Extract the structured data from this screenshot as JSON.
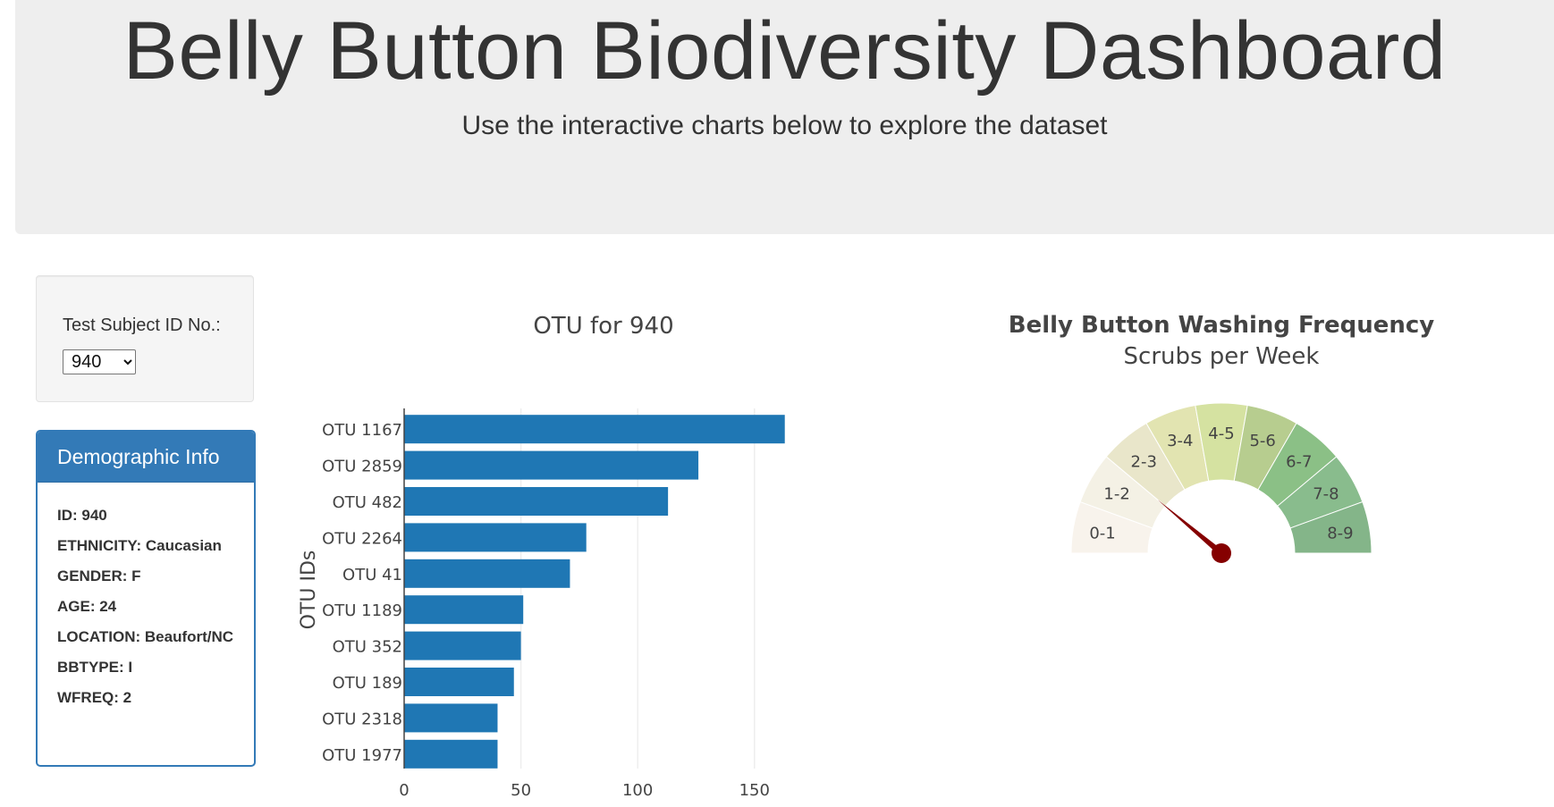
{
  "header": {
    "title": "Belly Button Biodiversity Dashboard",
    "subtitle": "Use the interactive charts below to explore the dataset"
  },
  "selector": {
    "label": "Test Subject ID No.:",
    "selected_value": "940"
  },
  "demographics": {
    "heading": "Demographic Info",
    "items": [
      "ID: 940",
      "ETHNICITY: Caucasian",
      "GENDER: F",
      "AGE: 24",
      "LOCATION: Beaufort/NC",
      "BBTYPE: I",
      "WFREQ: 2"
    ]
  },
  "chart_data": [
    {
      "type": "bar",
      "orientation": "horizontal",
      "title": "OTU for 940",
      "ylabel": "OTU IDs",
      "xlabel": "",
      "categories": [
        "OTU 1167",
        "OTU 2859",
        "OTU 482",
        "OTU 2264",
        "OTU 41",
        "OTU 1189",
        "OTU 352",
        "OTU 189",
        "OTU 2318",
        "OTU 1977"
      ],
      "values": [
        163,
        126,
        113,
        78,
        71,
        51,
        50,
        47,
        40,
        40
      ],
      "xlim": [
        0,
        170
      ],
      "xticks": [
        0,
        50,
        100,
        150
      ],
      "grid": true,
      "color": "#1f77b4"
    },
    {
      "type": "gauge",
      "title": "Belly Button Washing Frequency",
      "subtitle": "Scrubs per Week",
      "segments": [
        "0-1",
        "1-2",
        "2-3",
        "3-4",
        "4-5",
        "5-6",
        "6-7",
        "7-8",
        "8-9"
      ],
      "segment_colors": [
        "#f8f3ec",
        "#f4f1e5",
        "#e9e6ca",
        "#e2e4b1",
        "#d5e2a1",
        "#b7cd8f",
        "#8bc086",
        "#89bc8d",
        "#84b589"
      ],
      "range": [
        0,
        9
      ],
      "value": 2,
      "needle_color": "#850000"
    }
  ]
}
